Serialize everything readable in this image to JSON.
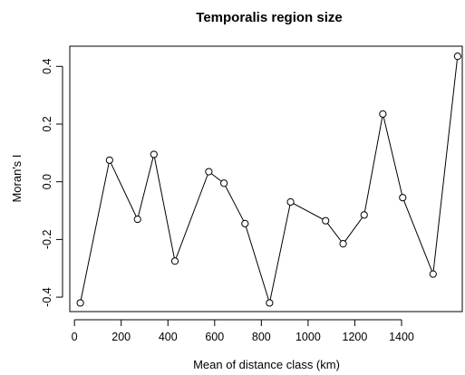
{
  "chart_data": {
    "type": "line",
    "title": "Temporalis region size",
    "xlabel": "Mean of distance class (km)",
    "ylabel": "Moran's I",
    "xlim": [
      -20,
      1660
    ],
    "ylim": [
      -0.45,
      0.47
    ],
    "x_ticks": [
      0,
      200,
      400,
      600,
      800,
      1000,
      1200,
      1400
    ],
    "y_ticks": [
      -0.4,
      -0.2,
      0.0,
      0.2,
      0.4
    ],
    "y_tick_labels": [
      "-0.4",
      "-0.2",
      "0.0",
      "0.2",
      "0.4"
    ],
    "grid": false,
    "marker": "open-circle",
    "series": [
      {
        "x": [
          25,
          150,
          270,
          340,
          430,
          575,
          640,
          730,
          835,
          925,
          1075,
          1150,
          1240,
          1320,
          1405,
          1535,
          1640
        ],
        "y": [
          -0.42,
          0.075,
          -0.13,
          0.095,
          -0.275,
          0.035,
          -0.005,
          -0.145,
          -0.42,
          -0.07,
          -0.135,
          -0.215,
          -0.115,
          0.235,
          -0.055,
          -0.32,
          0.435
        ]
      }
    ]
  }
}
